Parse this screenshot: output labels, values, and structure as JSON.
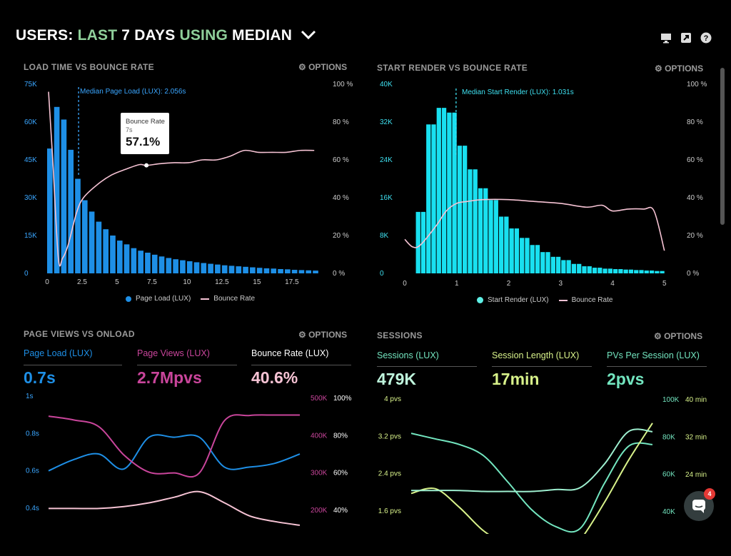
{
  "header": {
    "title_users": "USERS:",
    "title_last": "LAST",
    "title_days": "7 DAYS",
    "title_using": "USING",
    "title_median": "MEDIAN",
    "icons": [
      "monitor-icon",
      "share-icon",
      "help-icon"
    ]
  },
  "options_label": "OPTIONS",
  "colors": {
    "blue": "#1e8fe6",
    "cyan": "#19e0f0",
    "pink": "#f6c3d4",
    "magenta": "#c9459b",
    "green": "#73e6c0",
    "yellow": "#d8f28a"
  },
  "chat": {
    "badge": "4"
  },
  "panels": {
    "load": {
      "title": "LOAD TIME VS BOUNCE RATE",
      "median_label": "Median Page Load (LUX): 2.056s",
      "tooltip": {
        "title": "Bounce Rate",
        "sub": "7s",
        "value": "57.1%"
      },
      "legend": [
        "Page Load (LUX)",
        "Bounce Rate"
      ]
    },
    "render": {
      "title": "START RENDER VS BOUNCE RATE",
      "median_label": "Median Start Render (LUX): 1.031s",
      "legend": [
        "Start Render (LUX)",
        "Bounce Rate"
      ]
    },
    "pageviews": {
      "title": "PAGE VIEWS VS ONLOAD",
      "kpis": [
        {
          "label": "Page Load (LUX)",
          "value": "0.7s"
        },
        {
          "label": "Page Views (LUX)",
          "value": "2.7Mpvs"
        },
        {
          "label": "Bounce Rate (LUX)",
          "value": "40.6%"
        }
      ]
    },
    "sessions": {
      "title": "SESSIONS",
      "kpis": [
        {
          "label": "Sessions (LUX)",
          "value": "479K"
        },
        {
          "label": "Session Length (LUX)",
          "value": "17min"
        },
        {
          "label": "PVs Per Session (LUX)",
          "value": "2pvs"
        }
      ]
    }
  },
  "chart_data": [
    {
      "type": "bar",
      "title": "LOAD TIME VS BOUNCE RATE",
      "x_ticks": [
        "0",
        "2.5",
        "5",
        "7.5",
        "10",
        "12.5",
        "15",
        "17.5"
      ],
      "y_ticks": [
        "0",
        "15K",
        "30K",
        "45K",
        "60K",
        "75K"
      ],
      "y2_ticks": [
        "0 %",
        "20 %",
        "40 %",
        "60 %",
        "80 %",
        "100 %"
      ],
      "ylim": [
        0,
        75000
      ],
      "y2lim": [
        0,
        100
      ],
      "xlim": [
        0,
        19.5
      ],
      "series": [
        {
          "name": "Page Load (LUX)",
          "type": "bar",
          "x": [
            0,
            0.5,
            1,
            1.5,
            2,
            2.5,
            3,
            3.5,
            4,
            4.5,
            5,
            5.5,
            6,
            6.5,
            7,
            7.5,
            8,
            8.5,
            9,
            9.5,
            10,
            10.5,
            11,
            11.5,
            12,
            12.5,
            13,
            13.5,
            14,
            14.5,
            15,
            15.5,
            16,
            16.5,
            17,
            17.5,
            18,
            18.5,
            19
          ],
          "values": [
            49500,
            66000,
            61000,
            49000,
            37500,
            29000,
            24500,
            20500,
            17500,
            15000,
            13000,
            11500,
            10000,
            9000,
            8200,
            7400,
            6700,
            6100,
            5600,
            5200,
            4800,
            4400,
            4100,
            3800,
            3500,
            3200,
            3000,
            2800,
            2600,
            2400,
            2200,
            2000,
            1900,
            1700,
            1600,
            1400,
            1300,
            1200,
            1100
          ]
        },
        {
          "name": "Bounce Rate",
          "type": "line",
          "x": [
            0,
            0.3,
            0.7,
            1,
            1.4,
            2,
            2.5,
            3.5,
            4.5,
            5.5,
            6.5,
            7,
            8,
            9,
            10,
            11,
            12,
            13,
            14,
            15,
            16,
            17,
            18,
            19
          ],
          "values": [
            96,
            60,
            8,
            8,
            15,
            32,
            40,
            47,
            52,
            55,
            57.5,
            57.1,
            58,
            58.5,
            58.5,
            60,
            60,
            62,
            65,
            64,
            64,
            64,
            65,
            65
          ]
        }
      ],
      "annotations": [
        "Median Page Load (LUX): 2.056s",
        "Bounce Rate 7s 57.1%"
      ]
    },
    {
      "type": "bar",
      "title": "START RENDER VS BOUNCE RATE",
      "x_ticks": [
        "0",
        "1",
        "2",
        "3",
        "4",
        "5"
      ],
      "y_ticks": [
        "0",
        "8K",
        "16K",
        "24K",
        "32K",
        "40K"
      ],
      "y2_ticks": [
        "0 %",
        "20 %",
        "40 %",
        "60 %",
        "80 %",
        "100 %"
      ],
      "ylim": [
        0,
        40000
      ],
      "y2lim": [
        0,
        100
      ],
      "xlim": [
        0,
        5.1
      ],
      "series": [
        {
          "name": "Start Render (LUX)",
          "type": "bar",
          "x": [
            0.1,
            0.2,
            0.3,
            0.4,
            0.5,
            0.6,
            0.7,
            0.8,
            0.9,
            1,
            1.1,
            1.2,
            1.3,
            1.4,
            1.5,
            1.6,
            1.7,
            1.8,
            1.9,
            2,
            2.1,
            2.2,
            2.3,
            2.4,
            2.5,
            2.6,
            2.7,
            2.8,
            2.9,
            3,
            3.1,
            3.2,
            3.3,
            3.4,
            3.5,
            3.6,
            3.7,
            3.8,
            3.9,
            4,
            4.1,
            4.2,
            4.3,
            4.4,
            4.5,
            4.6,
            4.7,
            4.8,
            4.9,
            5
          ],
          "values": [
            0,
            0,
            13000,
            13000,
            31500,
            31500,
            35000,
            35000,
            34000,
            34000,
            27000,
            27000,
            22000,
            22000,
            18000,
            18000,
            15500,
            15500,
            12000,
            12000,
            9500,
            9500,
            7500,
            7500,
            6000,
            6000,
            4500,
            4500,
            3500,
            3500,
            2800,
            2800,
            2000,
            2000,
            1500,
            1500,
            1200,
            1200,
            1000,
            1000,
            900,
            900,
            800,
            800,
            700,
            700,
            600,
            600,
            500,
            500
          ]
        },
        {
          "name": "Bounce Rate",
          "type": "line",
          "x": [
            0,
            0.15,
            0.3,
            0.6,
            0.8,
            1,
            1.2,
            1.5,
            2,
            2.5,
            3,
            3.5,
            3.8,
            4,
            4.3,
            4.6,
            4.8,
            5
          ],
          "values": [
            18,
            14,
            15,
            25,
            33,
            37,
            38,
            39,
            39,
            38,
            37,
            35,
            36,
            33,
            34,
            34,
            33,
            12
          ]
        }
      ],
      "annotations": [
        "Median Start Render (LUX): 1.031s"
      ]
    },
    {
      "type": "line",
      "title": "PAGE VIEWS VS ONLOAD",
      "y_ticks": [
        "0.4s",
        "0.6s",
        "0.8s",
        "1s"
      ],
      "y2_ticks": [
        "200K",
        "300K",
        "400K",
        "500K"
      ],
      "y3_ticks": [
        "40%",
        "60%",
        "80%",
        "100%"
      ],
      "series": [
        {
          "name": "Page Load (LUX)",
          "x": [
            0,
            1,
            2,
            3,
            4,
            5,
            6,
            7,
            8,
            9,
            10
          ],
          "values": [
            0.6,
            0.66,
            0.69,
            0.61,
            0.78,
            0.78,
            0.78,
            0.62,
            0.62,
            0.64,
            0.69
          ]
        },
        {
          "name": "Page Views (LUX)",
          "x": [
            0,
            1,
            2,
            3,
            4,
            5,
            6,
            7,
            8,
            9,
            10
          ],
          "values": [
            452000,
            442000,
            424000,
            348000,
            302000,
            300000,
            300000,
            440000,
            454000,
            455000,
            455000
          ]
        },
        {
          "name": "Bounce Rate (LUX)",
          "x": [
            0,
            1,
            2,
            3,
            4,
            5,
            6,
            7,
            8,
            9,
            10
          ],
          "values": [
            0.41,
            0.41,
            0.41,
            0.42,
            0.44,
            0.47,
            0.5,
            0.44,
            0.37,
            0.34,
            0.32
          ]
        }
      ]
    },
    {
      "type": "line",
      "title": "SESSIONS",
      "y_ticks": [
        "1.6 pvs",
        "2.4 pvs",
        "3.2 pvs",
        "4 pvs"
      ],
      "y2_ticks": [
        "40K",
        "60K",
        "80K",
        "100K"
      ],
      "y3_ticks": [
        "24 min",
        "32 min",
        "40 min"
      ],
      "series": [
        {
          "name": "Sessions (LUX)",
          "x": [
            0,
            1,
            2,
            3,
            4,
            5,
            6,
            7,
            8,
            9,
            10
          ],
          "values": [
            82000,
            79000,
            76000,
            70000,
            56000,
            41000,
            32000,
            31000,
            55000,
            75000,
            76000
          ]
        },
        {
          "name": "Session Length (LUX)",
          "x": [
            0,
            1,
            2,
            3,
            4,
            5,
            6,
            7,
            8,
            9,
            10
          ],
          "values": [
            20,
            21,
            17,
            12,
            9,
            7,
            5,
            10,
            18,
            27,
            35
          ]
        },
        {
          "name": "PVs Per Session (LUX)",
          "x": [
            0,
            1,
            2,
            3,
            4,
            5,
            6,
            7,
            8,
            9,
            10
          ],
          "values": [
            2.04,
            2.04,
            2.04,
            2.02,
            2.02,
            2.02,
            2.06,
            2.1,
            2.6,
            3.3,
            3.3
          ]
        }
      ]
    }
  ]
}
